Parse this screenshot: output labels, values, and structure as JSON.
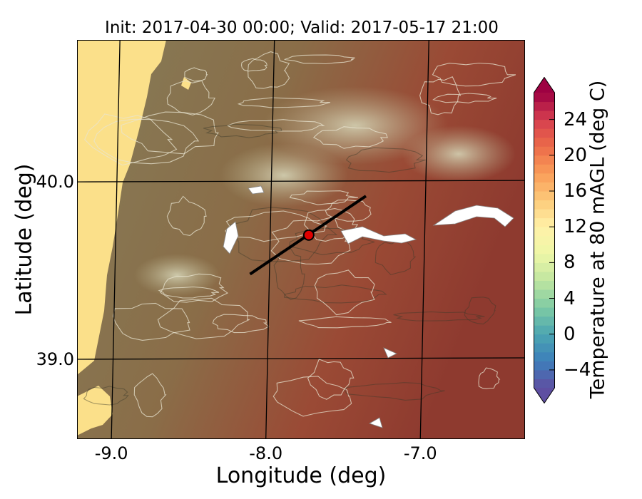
{
  "title": "Init: 2017-04-30 00:00; Valid: 2017-05-17 21:00",
  "x_axis": {
    "label": "Longitude (deg)",
    "range": [
      -9.25,
      -6.35
    ],
    "ticks": [
      {
        "label": "-9.0",
        "value": -9.0
      },
      {
        "label": "-8.0",
        "value": -8.0
      },
      {
        "label": "-7.0",
        "value": -7.0
      }
    ]
  },
  "y_axis": {
    "label": "Latitude (deg)",
    "range": [
      38.55,
      40.8
    ],
    "ticks": [
      {
        "label": "40.0",
        "value": 40.0
      },
      {
        "label": "39.0",
        "value": 39.0
      }
    ]
  },
  "colorbar": {
    "label": "Temperature at 80 mAGL (deg C)",
    "range": [
      -6,
      27
    ],
    "extend": "both",
    "ticks": [
      {
        "label": "24",
        "value": 24
      },
      {
        "label": "20",
        "value": 20
      },
      {
        "label": "16",
        "value": 16
      },
      {
        "label": "12",
        "value": 12
      },
      {
        "label": "8",
        "value": 8
      },
      {
        "label": "4",
        "value": 4
      },
      {
        "label": "0",
        "value": 0
      },
      {
        "label": "−4",
        "value": -4
      }
    ]
  },
  "transect": {
    "start": {
      "lon": -8.13,
      "lat": 39.48
    },
    "end": {
      "lon": -7.38,
      "lat": 39.92
    }
  },
  "marker": {
    "lon": -7.75,
    "lat": 39.7,
    "color": "#e00000"
  },
  "colors": {
    "ocean": "#fbe08a",
    "land_cool": "#857c58",
    "land_mid": "#8b6a45",
    "land_warm": "#a03a2e",
    "highlands": "#c7c6a6"
  }
}
